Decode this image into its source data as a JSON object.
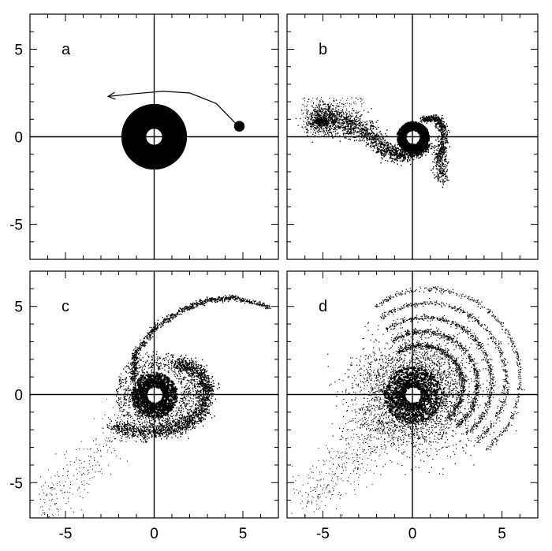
{
  "chart_data": [
    {
      "type": "scatter",
      "panel_label": "a",
      "xlim": [
        -7,
        7
      ],
      "ylim": [
        -7,
        7
      ],
      "xticks": [
        -5,
        0,
        5
      ],
      "yticks": [
        -5,
        0,
        5
      ],
      "xtick_labels_shown": false,
      "ytick_labels_shown": true,
      "features": {
        "disk": {
          "center": [
            0,
            0
          ],
          "inner_radius": 0.45,
          "outer_radius": 1.85
        },
        "perturber": {
          "position": [
            4.8,
            0.6
          ],
          "radius": 0.3
        },
        "trajectory": [
          [
            4.6,
            0.75
          ],
          [
            3.5,
            1.9
          ],
          [
            2.0,
            2.5
          ],
          [
            0.5,
            2.6
          ],
          [
            -1.2,
            2.45
          ],
          [
            -2.6,
            2.3
          ]
        ]
      }
    },
    {
      "type": "scatter",
      "panel_label": "b",
      "xlim": [
        -7,
        7
      ],
      "ylim": [
        -7,
        7
      ],
      "xticks": [
        -5,
        0,
        5
      ],
      "yticks": [
        -5,
        0,
        5
      ],
      "xtick_labels_shown": false,
      "ytick_labels_shown": false,
      "features": {
        "disk": {
          "center": [
            0,
            0
          ],
          "inner_radius": 0.4,
          "outer_radius": 0.9
        },
        "tidal_arm": [
          [
            -5.3,
            1.0
          ],
          [
            -4.6,
            1.2
          ],
          [
            -3.8,
            0.8
          ],
          [
            -3.0,
            0.6
          ],
          [
            -2.2,
            0.0
          ],
          [
            -1.4,
            -0.8
          ],
          [
            -0.7,
            -1.0
          ],
          [
            0.2,
            -0.9
          ],
          [
            0.9,
            -0.5
          ]
        ],
        "tail": [
          [
            0.5,
            1.0
          ],
          [
            1.3,
            1.1
          ],
          [
            1.7,
            0.5
          ],
          [
            1.6,
            -0.6
          ],
          [
            1.5,
            -1.4
          ],
          [
            1.6,
            -2.5
          ]
        ],
        "clump": {
          "center": [
            -5.2,
            0.9
          ],
          "radius": 0.7
        }
      }
    },
    {
      "type": "scatter",
      "panel_label": "c",
      "xlim": [
        -7,
        7
      ],
      "ylim": [
        -7,
        7
      ],
      "xticks": [
        -5,
        0,
        5
      ],
      "yticks": [
        -5,
        0,
        5
      ],
      "xtick_labels_shown": true,
      "ytick_labels_shown": true,
      "features": {
        "disk": {
          "center": [
            0,
            0
          ],
          "inner_radius": 0.45,
          "outer_radius": 1.3
        },
        "outer_arm": [
          [
            -1.2,
            0.9
          ],
          [
            -1.1,
            2.3
          ],
          [
            0.0,
            3.8
          ],
          [
            1.5,
            4.8
          ],
          [
            3.0,
            5.4
          ],
          [
            4.5,
            5.5
          ],
          [
            6.5,
            5.0
          ]
        ],
        "inner_loops": [
          [
            1.3,
            1.8
          ],
          [
            2.5,
            1.4
          ],
          [
            3.0,
            0.3
          ],
          [
            2.6,
            -1.0
          ],
          [
            1.5,
            -1.8
          ],
          [
            -0.5,
            -2.2
          ],
          [
            -2.4,
            -1.8
          ]
        ],
        "debris_region": {
          "x": [
            -6.5,
            -1.5
          ],
          "y": [
            -6.5,
            -1.5
          ]
        }
      }
    },
    {
      "type": "scatter",
      "panel_label": "d",
      "xlim": [
        -7,
        7
      ],
      "ylim": [
        -7,
        7
      ],
      "xticks": [
        -5,
        0,
        5
      ],
      "yticks": [
        -5,
        0,
        5
      ],
      "xtick_labels_shown": true,
      "ytick_labels_shown": false,
      "features": {
        "disk": {
          "center": [
            0,
            0
          ],
          "inner_radius": 0.45,
          "outer_radius": 1.6
        },
        "shells": [
          {
            "center": [
              0.5,
              0.5
            ],
            "radius": 2.3
          },
          {
            "center": [
              0.6,
              0.6
            ],
            "radius": 3.0
          },
          {
            "center": [
              0.7,
              0.7
            ],
            "radius": 3.7
          },
          {
            "center": [
              0.8,
              0.8
            ],
            "radius": 4.4
          },
          {
            "center": [
              0.9,
              0.9
            ],
            "radius": 5.1
          }
        ],
        "debris_region": {
          "x": [
            -6.0,
            -1.0
          ],
          "y": [
            -6.0,
            -1.0
          ]
        }
      }
    }
  ]
}
